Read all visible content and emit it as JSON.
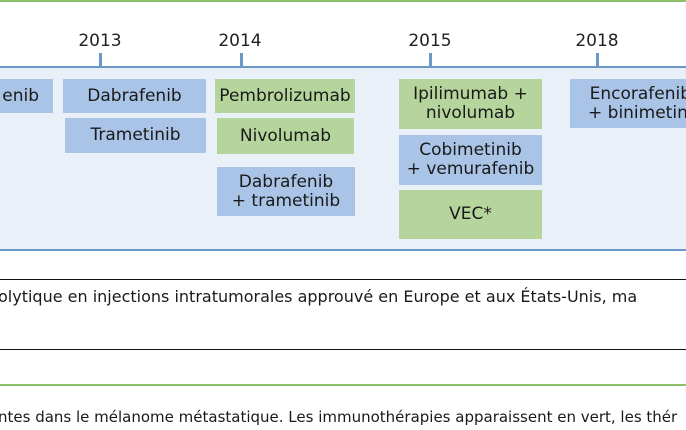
{
  "colors": {
    "rule": "#8dc06a",
    "panel": "#eaf0f7",
    "panel_border": "#6b98c9",
    "targeted_therapy": "#a9c4e6",
    "immunotherapy": "#b5d59d"
  },
  "years": [
    "2013",
    "2014",
    "2015",
    "2018"
  ],
  "boxes": [
    {
      "text": "enib",
      "category": "targeted"
    },
    {
      "text": "Dabrafenib",
      "category": "targeted"
    },
    {
      "text": "Trametinib",
      "category": "targeted"
    },
    {
      "text": "Pembrolizumab",
      "category": "immunotherapy"
    },
    {
      "text": "Nivolumab",
      "category": "immunotherapy"
    },
    {
      "text": "Dabrafenib\n+ trametinib",
      "category": "targeted"
    },
    {
      "text": "Ipilimumab +\nnivolumab",
      "category": "immunotherapy"
    },
    {
      "text": "Cobimetinib\n+ vemurafenib",
      "category": "targeted"
    },
    {
      "text": "VEC*",
      "category": "immunotherapy"
    },
    {
      "text": "Encorafenib\n+ binimetini",
      "category": "targeted"
    }
  ],
  "footnote": "olytique en injections intratumorales approuvé en Europe et aux États-Unis, ma",
  "caption": "ntes dans le mélanome métastatique. Les immunothérapies apparaissent en vert, les thér"
}
